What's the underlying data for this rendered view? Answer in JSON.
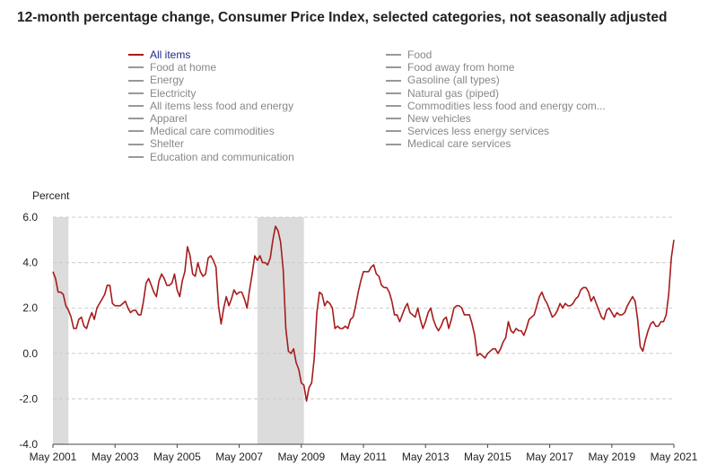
{
  "title": "12-month percentage change, Consumer Price Index, selected categories, not seasonally adjusted",
  "colors": {
    "active_series": "#a61c1c",
    "inactive_legend": "#999999",
    "recession_band": "#dcdcdc",
    "gridline": "#cccccc",
    "active_legend_text": "#1f2a8a"
  },
  "legend": {
    "left": [
      {
        "label": "All items",
        "active": true
      },
      {
        "label": "Food at home",
        "active": false
      },
      {
        "label": "Energy",
        "active": false
      },
      {
        "label": "Electricity",
        "active": false
      },
      {
        "label": "All items less food and energy",
        "active": false
      },
      {
        "label": "Apparel",
        "active": false
      },
      {
        "label": "Medical care commodities",
        "active": false
      },
      {
        "label": "Shelter",
        "active": false
      },
      {
        "label": "Education and communication",
        "active": false
      }
    ],
    "right": [
      {
        "label": "Food",
        "active": false
      },
      {
        "label": "Food away from home",
        "active": false
      },
      {
        "label": "Gasoline (all types)",
        "active": false
      },
      {
        "label": "Natural gas (piped)",
        "active": false
      },
      {
        "label": "Commodities less food and energy com...",
        "active": false
      },
      {
        "label": "New vehicles",
        "active": false
      },
      {
        "label": "Services less energy services",
        "active": false
      },
      {
        "label": "Medical care services",
        "active": false
      }
    ]
  },
  "chart_data": {
    "type": "line",
    "title": "12-month percentage change, Consumer Price Index, selected categories, not seasonally adjusted",
    "ylabel": "Percent",
    "xlabel": "",
    "ylim": [
      -4.0,
      6.0
    ],
    "yticks": [
      "6.0",
      "4.0",
      "2.0",
      "0.0",
      "-2.0",
      "-4.0"
    ],
    "ytick_values": [
      6,
      4,
      2,
      0,
      -2,
      -4
    ],
    "xticks": [
      "May 2001",
      "May 2003",
      "May 2005",
      "May 2007",
      "May 2009",
      "May 2011",
      "May 2013",
      "May 2015",
      "May 2017",
      "May 2019",
      "May 2021"
    ],
    "xlim": [
      "2001-05",
      "2021-05"
    ],
    "grid": true,
    "recessions": [
      {
        "start": "2001-05",
        "end": "2001-11"
      },
      {
        "start": "2007-12",
        "end": "2009-06"
      }
    ],
    "series": [
      {
        "name": "All items",
        "points": [
          [
            "2001-05",
            3.6
          ],
          [
            "2001-06",
            3.3
          ],
          [
            "2001-07",
            2.7
          ],
          [
            "2001-08",
            2.7
          ],
          [
            "2001-09",
            2.6
          ],
          [
            "2001-10",
            2.1
          ],
          [
            "2001-11",
            1.9
          ],
          [
            "2001-12",
            1.6
          ],
          [
            "2002-01",
            1.1
          ],
          [
            "2002-02",
            1.1
          ],
          [
            "2002-03",
            1.5
          ],
          [
            "2002-04",
            1.6
          ],
          [
            "2002-05",
            1.2
          ],
          [
            "2002-06",
            1.1
          ],
          [
            "2002-07",
            1.5
          ],
          [
            "2002-08",
            1.8
          ],
          [
            "2002-09",
            1.5
          ],
          [
            "2002-10",
            2.0
          ],
          [
            "2002-11",
            2.2
          ],
          [
            "2002-12",
            2.4
          ],
          [
            "2003-01",
            2.6
          ],
          [
            "2003-02",
            3.0
          ],
          [
            "2003-03",
            3.0
          ],
          [
            "2003-04",
            2.2
          ],
          [
            "2003-05",
            2.1
          ],
          [
            "2003-06",
            2.1
          ],
          [
            "2003-07",
            2.1
          ],
          [
            "2003-08",
            2.2
          ],
          [
            "2003-09",
            2.3
          ],
          [
            "2003-10",
            2.0
          ],
          [
            "2003-11",
            1.8
          ],
          [
            "2003-12",
            1.9
          ],
          [
            "2004-01",
            1.9
          ],
          [
            "2004-02",
            1.7
          ],
          [
            "2004-03",
            1.7
          ],
          [
            "2004-04",
            2.3
          ],
          [
            "2004-05",
            3.1
          ],
          [
            "2004-06",
            3.3
          ],
          [
            "2004-07",
            3.0
          ],
          [
            "2004-08",
            2.7
          ],
          [
            "2004-09",
            2.5
          ],
          [
            "2004-10",
            3.2
          ],
          [
            "2004-11",
            3.5
          ],
          [
            "2004-12",
            3.3
          ],
          [
            "2005-01",
            3.0
          ],
          [
            "2005-02",
            3.0
          ],
          [
            "2005-03",
            3.1
          ],
          [
            "2005-04",
            3.5
          ],
          [
            "2005-05",
            2.8
          ],
          [
            "2005-06",
            2.5
          ],
          [
            "2005-07",
            3.2
          ],
          [
            "2005-08",
            3.6
          ],
          [
            "2005-09",
            4.7
          ],
          [
            "2005-10",
            4.3
          ],
          [
            "2005-11",
            3.5
          ],
          [
            "2005-12",
            3.4
          ],
          [
            "2006-01",
            4.0
          ],
          [
            "2006-02",
            3.6
          ],
          [
            "2006-03",
            3.4
          ],
          [
            "2006-04",
            3.5
          ],
          [
            "2006-05",
            4.2
          ],
          [
            "2006-06",
            4.3
          ],
          [
            "2006-07",
            4.1
          ],
          [
            "2006-08",
            3.8
          ],
          [
            "2006-09",
            2.1
          ],
          [
            "2006-10",
            1.3
          ],
          [
            "2006-11",
            2.0
          ],
          [
            "2006-12",
            2.5
          ],
          [
            "2007-01",
            2.1
          ],
          [
            "2007-02",
            2.4
          ],
          [
            "2007-03",
            2.8
          ],
          [
            "2007-04",
            2.6
          ],
          [
            "2007-05",
            2.7
          ],
          [
            "2007-06",
            2.7
          ],
          [
            "2007-07",
            2.4
          ],
          [
            "2007-08",
            2.0
          ],
          [
            "2007-09",
            2.8
          ],
          [
            "2007-10",
            3.5
          ],
          [
            "2007-11",
            4.3
          ],
          [
            "2007-12",
            4.1
          ],
          [
            "2008-01",
            4.3
          ],
          [
            "2008-02",
            4.0
          ],
          [
            "2008-03",
            4.0
          ],
          [
            "2008-04",
            3.9
          ],
          [
            "2008-05",
            4.2
          ],
          [
            "2008-06",
            5.0
          ],
          [
            "2008-07",
            5.6
          ],
          [
            "2008-08",
            5.4
          ],
          [
            "2008-09",
            4.9
          ],
          [
            "2008-10",
            3.7
          ],
          [
            "2008-11",
            1.1
          ],
          [
            "2008-12",
            0.1
          ],
          [
            "2009-01",
            0.0
          ],
          [
            "2009-02",
            0.2
          ],
          [
            "2009-03",
            -0.4
          ],
          [
            "2009-04",
            -0.7
          ],
          [
            "2009-05",
            -1.3
          ],
          [
            "2009-06",
            -1.4
          ],
          [
            "2009-07",
            -2.1
          ],
          [
            "2009-08",
            -1.5
          ],
          [
            "2009-09",
            -1.3
          ],
          [
            "2009-10",
            -0.2
          ],
          [
            "2009-11",
            1.8
          ],
          [
            "2009-12",
            2.7
          ],
          [
            "2010-01",
            2.6
          ],
          [
            "2010-02",
            2.1
          ],
          [
            "2010-03",
            2.3
          ],
          [
            "2010-04",
            2.2
          ],
          [
            "2010-05",
            2.0
          ],
          [
            "2010-06",
            1.1
          ],
          [
            "2010-07",
            1.2
          ],
          [
            "2010-08",
            1.1
          ],
          [
            "2010-09",
            1.1
          ],
          [
            "2010-10",
            1.2
          ],
          [
            "2010-11",
            1.1
          ],
          [
            "2010-12",
            1.5
          ],
          [
            "2011-01",
            1.6
          ],
          [
            "2011-02",
            2.1
          ],
          [
            "2011-03",
            2.7
          ],
          [
            "2011-04",
            3.2
          ],
          [
            "2011-05",
            3.6
          ],
          [
            "2011-06",
            3.6
          ],
          [
            "2011-07",
            3.6
          ],
          [
            "2011-08",
            3.8
          ],
          [
            "2011-09",
            3.9
          ],
          [
            "2011-10",
            3.5
          ],
          [
            "2011-11",
            3.4
          ],
          [
            "2011-12",
            3.0
          ],
          [
            "2012-01",
            2.9
          ],
          [
            "2012-02",
            2.9
          ],
          [
            "2012-03",
            2.7
          ],
          [
            "2012-04",
            2.3
          ],
          [
            "2012-05",
            1.7
          ],
          [
            "2012-06",
            1.7
          ],
          [
            "2012-07",
            1.4
          ],
          [
            "2012-08",
            1.7
          ],
          [
            "2012-09",
            2.0
          ],
          [
            "2012-10",
            2.2
          ],
          [
            "2012-11",
            1.8
          ],
          [
            "2012-12",
            1.7
          ],
          [
            "2013-01",
            1.6
          ],
          [
            "2013-02",
            2.0
          ],
          [
            "2013-03",
            1.5
          ],
          [
            "2013-04",
            1.1
          ],
          [
            "2013-05",
            1.4
          ],
          [
            "2013-06",
            1.8
          ],
          [
            "2013-07",
            2.0
          ],
          [
            "2013-08",
            1.5
          ],
          [
            "2013-09",
            1.2
          ],
          [
            "2013-10",
            1.0
          ],
          [
            "2013-11",
            1.2
          ],
          [
            "2013-12",
            1.5
          ],
          [
            "2014-01",
            1.6
          ],
          [
            "2014-02",
            1.1
          ],
          [
            "2014-03",
            1.5
          ],
          [
            "2014-04",
            2.0
          ],
          [
            "2014-05",
            2.1
          ],
          [
            "2014-06",
            2.1
          ],
          [
            "2014-07",
            2.0
          ],
          [
            "2014-08",
            1.7
          ],
          [
            "2014-09",
            1.7
          ],
          [
            "2014-10",
            1.7
          ],
          [
            "2014-11",
            1.3
          ],
          [
            "2014-12",
            0.8
          ],
          [
            "2015-01",
            -0.1
          ],
          [
            "2015-02",
            0.0
          ],
          [
            "2015-03",
            -0.1
          ],
          [
            "2015-04",
            -0.2
          ],
          [
            "2015-05",
            0.0
          ],
          [
            "2015-06",
            0.1
          ],
          [
            "2015-07",
            0.2
          ],
          [
            "2015-08",
            0.2
          ],
          [
            "2015-09",
            0.0
          ],
          [
            "2015-10",
            0.2
          ],
          [
            "2015-11",
            0.5
          ],
          [
            "2015-12",
            0.7
          ],
          [
            "2016-01",
            1.4
          ],
          [
            "2016-02",
            1.0
          ],
          [
            "2016-03",
            0.9
          ],
          [
            "2016-04",
            1.1
          ],
          [
            "2016-05",
            1.0
          ],
          [
            "2016-06",
            1.0
          ],
          [
            "2016-07",
            0.8
          ],
          [
            "2016-08",
            1.1
          ],
          [
            "2016-09",
            1.5
          ],
          [
            "2016-10",
            1.6
          ],
          [
            "2016-11",
            1.7
          ],
          [
            "2016-12",
            2.1
          ],
          [
            "2017-01",
            2.5
          ],
          [
            "2017-02",
            2.7
          ],
          [
            "2017-03",
            2.4
          ],
          [
            "2017-04",
            2.2
          ],
          [
            "2017-05",
            1.9
          ],
          [
            "2017-06",
            1.6
          ],
          [
            "2017-07",
            1.7
          ],
          [
            "2017-08",
            1.9
          ],
          [
            "2017-09",
            2.2
          ],
          [
            "2017-10",
            2.0
          ],
          [
            "2017-11",
            2.2
          ],
          [
            "2017-12",
            2.1
          ],
          [
            "2018-01",
            2.1
          ],
          [
            "2018-02",
            2.2
          ],
          [
            "2018-03",
            2.4
          ],
          [
            "2018-04",
            2.5
          ],
          [
            "2018-05",
            2.8
          ],
          [
            "2018-06",
            2.9
          ],
          [
            "2018-07",
            2.9
          ],
          [
            "2018-08",
            2.7
          ],
          [
            "2018-09",
            2.3
          ],
          [
            "2018-10",
            2.5
          ],
          [
            "2018-11",
            2.2
          ],
          [
            "2018-12",
            1.9
          ],
          [
            "2019-01",
            1.6
          ],
          [
            "2019-02",
            1.5
          ],
          [
            "2019-03",
            1.9
          ],
          [
            "2019-04",
            2.0
          ],
          [
            "2019-05",
            1.8
          ],
          [
            "2019-06",
            1.6
          ],
          [
            "2019-07",
            1.8
          ],
          [
            "2019-08",
            1.7
          ],
          [
            "2019-09",
            1.7
          ],
          [
            "2019-10",
            1.8
          ],
          [
            "2019-11",
            2.1
          ],
          [
            "2019-12",
            2.3
          ],
          [
            "2020-01",
            2.5
          ],
          [
            "2020-02",
            2.3
          ],
          [
            "2020-03",
            1.5
          ],
          [
            "2020-04",
            0.3
          ],
          [
            "2020-05",
            0.1
          ],
          [
            "2020-06",
            0.6
          ],
          [
            "2020-07",
            1.0
          ],
          [
            "2020-08",
            1.3
          ],
          [
            "2020-09",
            1.4
          ],
          [
            "2020-10",
            1.2
          ],
          [
            "2020-11",
            1.2
          ],
          [
            "2020-12",
            1.4
          ],
          [
            "2021-01",
            1.4
          ],
          [
            "2021-02",
            1.7
          ],
          [
            "2021-03",
            2.6
          ],
          [
            "2021-04",
            4.2
          ],
          [
            "2021-05",
            5.0
          ]
        ]
      }
    ]
  }
}
